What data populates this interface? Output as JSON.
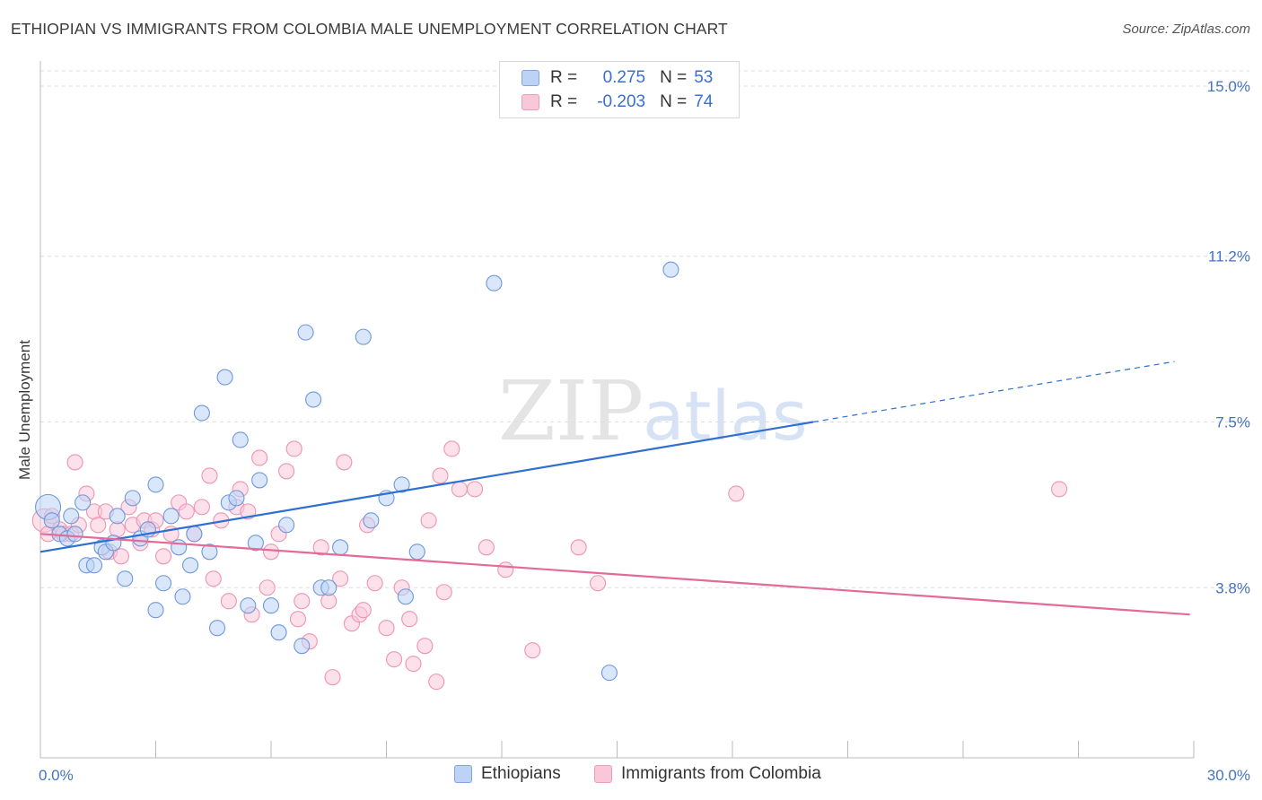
{
  "title": "ETHIOPIAN VS IMMIGRANTS FROM COLOMBIA MALE UNEMPLOYMENT CORRELATION CHART",
  "source": "Source: ZipAtlas.com",
  "watermark": {
    "zip": "ZIP",
    "atlas": "atlas"
  },
  "legend": {
    "r_label": "R =",
    "n_label": "N =",
    "rows": [
      {
        "r": "0.275",
        "n": "53"
      },
      {
        "r": "-0.203",
        "n": "74"
      }
    ]
  },
  "bottom_legend": [
    "Ethiopians",
    "Immigrants from Colombia"
  ],
  "colors": {
    "blue": "#2e6fd0",
    "blue_fill": "#bcd3f5",
    "blue_stroke": "#6d98dc",
    "pink": "#e26b97",
    "pink_fill": "#f9c8d8",
    "pink_stroke": "#ee93b3",
    "grid": "#dddddd",
    "tick_label": "#4472c4"
  },
  "chart_data": {
    "type": "scatter",
    "title": "ETHIOPIAN VS IMMIGRANTS FROM COLOMBIA MALE UNEMPLOYMENT CORRELATION CHART",
    "xlabel": "",
    "ylabel": "Male Unemployment",
    "xlim": [
      0,
      30
    ],
    "ylim": [
      0,
      15.5
    ],
    "x_tick_labels": [
      "0.0%",
      "30.0%"
    ],
    "y_ticks": [
      3.8,
      7.5,
      11.2,
      15.0
    ],
    "y_tick_labels": [
      "3.8%",
      "7.5%",
      "11.2%",
      "15.0%"
    ],
    "grid": "horizontal dashed",
    "series": [
      {
        "name": "Ethiopians",
        "r": 0.275,
        "n": 53,
        "trend": {
          "x0": 0,
          "y0": 4.6,
          "x1": 20.1,
          "y1": 7.5,
          "dashed_to_x": 29.5,
          "dashed_to_y": 8.85
        },
        "points": [
          [
            0.2,
            5.6
          ],
          [
            0.3,
            5.3
          ],
          [
            0.5,
            5.0
          ],
          [
            0.7,
            4.9
          ],
          [
            0.8,
            5.4
          ],
          [
            0.9,
            5.0
          ],
          [
            1.1,
            5.7
          ],
          [
            1.2,
            4.3
          ],
          [
            1.4,
            4.3
          ],
          [
            1.6,
            4.7
          ],
          [
            1.7,
            4.6
          ],
          [
            1.9,
            4.8
          ],
          [
            2.0,
            5.4
          ],
          [
            2.2,
            4.0
          ],
          [
            2.4,
            5.8
          ],
          [
            2.6,
            4.9
          ],
          [
            2.8,
            5.1
          ],
          [
            3.0,
            3.3
          ],
          [
            3.0,
            6.1
          ],
          [
            3.2,
            3.9
          ],
          [
            3.4,
            5.4
          ],
          [
            3.6,
            4.7
          ],
          [
            3.7,
            3.6
          ],
          [
            3.9,
            4.3
          ],
          [
            4.0,
            5.0
          ],
          [
            4.2,
            7.7
          ],
          [
            4.4,
            4.6
          ],
          [
            4.6,
            2.9
          ],
          [
            4.8,
            8.5
          ],
          [
            4.9,
            5.7
          ],
          [
            5.1,
            5.8
          ],
          [
            5.2,
            7.1
          ],
          [
            5.4,
            3.4
          ],
          [
            5.6,
            4.8
          ],
          [
            5.7,
            6.2
          ],
          [
            6.0,
            3.4
          ],
          [
            6.2,
            2.8
          ],
          [
            6.4,
            5.2
          ],
          [
            6.8,
            2.5
          ],
          [
            6.9,
            9.5
          ],
          [
            7.1,
            8.0
          ],
          [
            7.3,
            3.8
          ],
          [
            7.5,
            3.8
          ],
          [
            7.8,
            4.7
          ],
          [
            8.4,
            9.4
          ],
          [
            8.6,
            5.3
          ],
          [
            9.0,
            5.8
          ],
          [
            9.4,
            6.1
          ],
          [
            9.5,
            3.6
          ],
          [
            9.8,
            4.6
          ],
          [
            11.8,
            10.6
          ],
          [
            14.8,
            1.9
          ],
          [
            16.4,
            10.9
          ]
        ]
      },
      {
        "name": "Immigrants from Colombia",
        "r": -0.203,
        "n": 74,
        "trend": {
          "x0": 0,
          "y0": 5.0,
          "x1": 29.9,
          "y1": 3.2
        },
        "points": [
          [
            0.1,
            5.3
          ],
          [
            0.2,
            5.0
          ],
          [
            0.3,
            5.4
          ],
          [
            0.5,
            5.1
          ],
          [
            0.6,
            5.0
          ],
          [
            0.8,
            5.0
          ],
          [
            0.9,
            6.6
          ],
          [
            1.0,
            5.2
          ],
          [
            1.2,
            5.9
          ],
          [
            1.4,
            5.5
          ],
          [
            1.5,
            5.2
          ],
          [
            1.7,
            5.5
          ],
          [
            1.8,
            4.6
          ],
          [
            2.0,
            5.1
          ],
          [
            2.1,
            4.5
          ],
          [
            2.3,
            5.6
          ],
          [
            2.4,
            5.2
          ],
          [
            2.6,
            4.8
          ],
          [
            2.7,
            5.3
          ],
          [
            2.9,
            5.1
          ],
          [
            3.0,
            5.3
          ],
          [
            3.2,
            4.5
          ],
          [
            3.4,
            5.0
          ],
          [
            3.6,
            5.7
          ],
          [
            3.8,
            5.5
          ],
          [
            4.0,
            5.0
          ],
          [
            4.2,
            5.6
          ],
          [
            4.4,
            6.3
          ],
          [
            4.5,
            4.0
          ],
          [
            4.7,
            5.3
          ],
          [
            4.9,
            3.5
          ],
          [
            5.1,
            5.6
          ],
          [
            5.2,
            6.0
          ],
          [
            5.4,
            5.5
          ],
          [
            5.5,
            3.2
          ],
          [
            5.7,
            6.7
          ],
          [
            5.9,
            3.8
          ],
          [
            6.0,
            4.6
          ],
          [
            6.2,
            5.0
          ],
          [
            6.4,
            6.4
          ],
          [
            6.6,
            6.9
          ],
          [
            6.7,
            3.1
          ],
          [
            6.8,
            3.5
          ],
          [
            7.0,
            2.6
          ],
          [
            7.3,
            4.7
          ],
          [
            7.5,
            3.5
          ],
          [
            7.6,
            1.8
          ],
          [
            7.8,
            4.0
          ],
          [
            7.9,
            6.6
          ],
          [
            8.1,
            3.0
          ],
          [
            8.3,
            3.2
          ],
          [
            8.4,
            3.3
          ],
          [
            8.5,
            5.2
          ],
          [
            8.7,
            3.9
          ],
          [
            9.0,
            2.9
          ],
          [
            9.2,
            2.2
          ],
          [
            9.4,
            3.8
          ],
          [
            9.6,
            3.1
          ],
          [
            9.7,
            2.1
          ],
          [
            10.0,
            2.5
          ],
          [
            10.1,
            5.3
          ],
          [
            10.3,
            1.7
          ],
          [
            10.5,
            3.7
          ],
          [
            10.7,
            6.9
          ],
          [
            10.4,
            6.3
          ],
          [
            11.3,
            6.0
          ],
          [
            11.6,
            4.7
          ],
          [
            12.1,
            4.2
          ],
          [
            12.8,
            2.4
          ],
          [
            14.0,
            4.7
          ],
          [
            14.5,
            3.9
          ],
          [
            18.1,
            5.9
          ],
          [
            26.5,
            6.0
          ],
          [
            10.9,
            6.0
          ]
        ]
      }
    ]
  }
}
